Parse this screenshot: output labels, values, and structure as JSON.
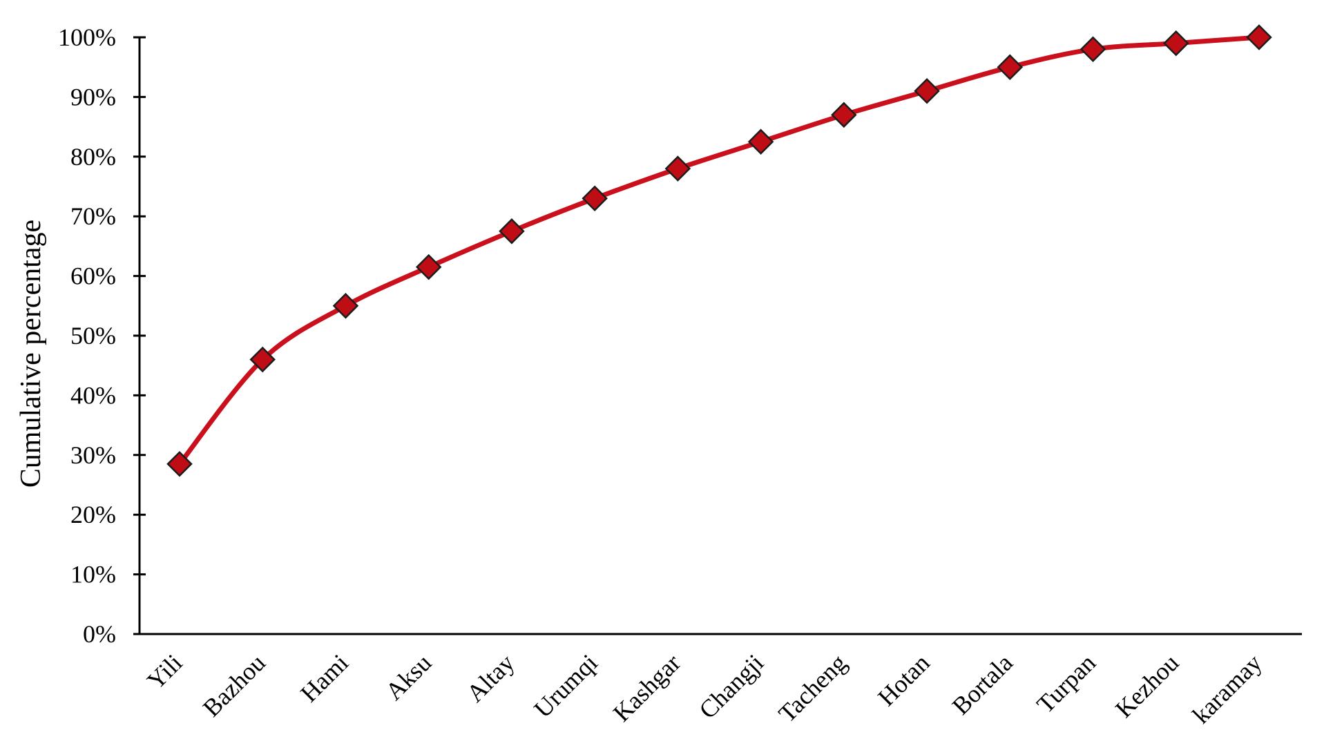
{
  "chart_data": {
    "type": "line",
    "title": "",
    "xlabel": "",
    "ylabel": "Cumulative percentage",
    "categories": [
      "Yili",
      "Bazhou",
      "Hami",
      "Aksu",
      "Altay",
      "Urumqi",
      "Kashgar",
      "Changji",
      "Tacheng",
      "Hotan",
      "Bortala",
      "Turpan",
      "Kezhou",
      "karamay"
    ],
    "series": [
      {
        "name": "Cumulative percentage",
        "values": [
          28.5,
          46,
          55,
          61.5,
          67.5,
          73,
          78,
          82.5,
          87,
          91,
          95,
          98,
          99,
          100
        ]
      }
    ],
    "y_axis": {
      "min": 0,
      "max": 100,
      "step": 10,
      "tick_labels": [
        "0%",
        "10%",
        "20%",
        "30%",
        "40%",
        "50%",
        "60%",
        "70%",
        "80%",
        "90%",
        "100%"
      ]
    },
    "x_axis": {
      "label_rotation_deg": -45
    },
    "ylim": [
      0,
      100
    ],
    "grid": false,
    "legend": "none",
    "marker": "diamond",
    "line_smooth": true,
    "colors": {
      "line": "#c9101c",
      "marker_fill": "#bf0d16",
      "marker_stroke": "#1c1c1c",
      "axis": "#000000",
      "text": "#000000",
      "background": "#ffffff"
    }
  }
}
